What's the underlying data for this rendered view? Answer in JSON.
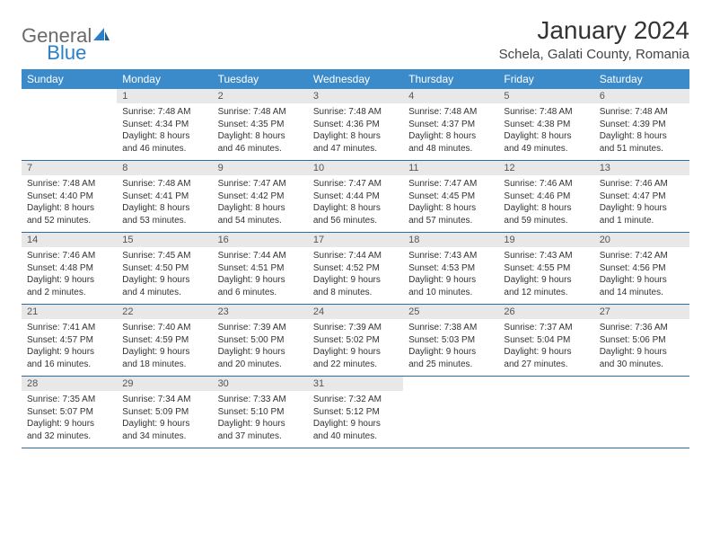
{
  "logo": {
    "text1": "General",
    "text2": "Blue"
  },
  "title": "January 2024",
  "location": "Schela, Galati County, Romania",
  "day_headers": [
    "Sunday",
    "Monday",
    "Tuesday",
    "Wednesday",
    "Thursday",
    "Friday",
    "Saturday"
  ],
  "colors": {
    "header_bg": "#3b8bca",
    "rule": "#2a6ca8",
    "daynum_bg": "#e8e8e8"
  },
  "weeks": [
    {
      "nums": [
        "",
        "1",
        "2",
        "3",
        "4",
        "5",
        "6"
      ],
      "cells": [
        {
          "empty": true
        },
        {
          "sunrise": "Sunrise: 7:48 AM",
          "sunset": "Sunset: 4:34 PM",
          "day1": "Daylight: 8 hours",
          "day2": "and 46 minutes."
        },
        {
          "sunrise": "Sunrise: 7:48 AM",
          "sunset": "Sunset: 4:35 PM",
          "day1": "Daylight: 8 hours",
          "day2": "and 46 minutes."
        },
        {
          "sunrise": "Sunrise: 7:48 AM",
          "sunset": "Sunset: 4:36 PM",
          "day1": "Daylight: 8 hours",
          "day2": "and 47 minutes."
        },
        {
          "sunrise": "Sunrise: 7:48 AM",
          "sunset": "Sunset: 4:37 PM",
          "day1": "Daylight: 8 hours",
          "day2": "and 48 minutes."
        },
        {
          "sunrise": "Sunrise: 7:48 AM",
          "sunset": "Sunset: 4:38 PM",
          "day1": "Daylight: 8 hours",
          "day2": "and 49 minutes."
        },
        {
          "sunrise": "Sunrise: 7:48 AM",
          "sunset": "Sunset: 4:39 PM",
          "day1": "Daylight: 8 hours",
          "day2": "and 51 minutes."
        }
      ]
    },
    {
      "nums": [
        "7",
        "8",
        "9",
        "10",
        "11",
        "12",
        "13"
      ],
      "cells": [
        {
          "sunrise": "Sunrise: 7:48 AM",
          "sunset": "Sunset: 4:40 PM",
          "day1": "Daylight: 8 hours",
          "day2": "and 52 minutes."
        },
        {
          "sunrise": "Sunrise: 7:48 AM",
          "sunset": "Sunset: 4:41 PM",
          "day1": "Daylight: 8 hours",
          "day2": "and 53 minutes."
        },
        {
          "sunrise": "Sunrise: 7:47 AM",
          "sunset": "Sunset: 4:42 PM",
          "day1": "Daylight: 8 hours",
          "day2": "and 54 minutes."
        },
        {
          "sunrise": "Sunrise: 7:47 AM",
          "sunset": "Sunset: 4:44 PM",
          "day1": "Daylight: 8 hours",
          "day2": "and 56 minutes."
        },
        {
          "sunrise": "Sunrise: 7:47 AM",
          "sunset": "Sunset: 4:45 PM",
          "day1": "Daylight: 8 hours",
          "day2": "and 57 minutes."
        },
        {
          "sunrise": "Sunrise: 7:46 AM",
          "sunset": "Sunset: 4:46 PM",
          "day1": "Daylight: 8 hours",
          "day2": "and 59 minutes."
        },
        {
          "sunrise": "Sunrise: 7:46 AM",
          "sunset": "Sunset: 4:47 PM",
          "day1": "Daylight: 9 hours",
          "day2": "and 1 minute."
        }
      ]
    },
    {
      "nums": [
        "14",
        "15",
        "16",
        "17",
        "18",
        "19",
        "20"
      ],
      "cells": [
        {
          "sunrise": "Sunrise: 7:46 AM",
          "sunset": "Sunset: 4:48 PM",
          "day1": "Daylight: 9 hours",
          "day2": "and 2 minutes."
        },
        {
          "sunrise": "Sunrise: 7:45 AM",
          "sunset": "Sunset: 4:50 PM",
          "day1": "Daylight: 9 hours",
          "day2": "and 4 minutes."
        },
        {
          "sunrise": "Sunrise: 7:44 AM",
          "sunset": "Sunset: 4:51 PM",
          "day1": "Daylight: 9 hours",
          "day2": "and 6 minutes."
        },
        {
          "sunrise": "Sunrise: 7:44 AM",
          "sunset": "Sunset: 4:52 PM",
          "day1": "Daylight: 9 hours",
          "day2": "and 8 minutes."
        },
        {
          "sunrise": "Sunrise: 7:43 AM",
          "sunset": "Sunset: 4:53 PM",
          "day1": "Daylight: 9 hours",
          "day2": "and 10 minutes."
        },
        {
          "sunrise": "Sunrise: 7:43 AM",
          "sunset": "Sunset: 4:55 PM",
          "day1": "Daylight: 9 hours",
          "day2": "and 12 minutes."
        },
        {
          "sunrise": "Sunrise: 7:42 AM",
          "sunset": "Sunset: 4:56 PM",
          "day1": "Daylight: 9 hours",
          "day2": "and 14 minutes."
        }
      ]
    },
    {
      "nums": [
        "21",
        "22",
        "23",
        "24",
        "25",
        "26",
        "27"
      ],
      "cells": [
        {
          "sunrise": "Sunrise: 7:41 AM",
          "sunset": "Sunset: 4:57 PM",
          "day1": "Daylight: 9 hours",
          "day2": "and 16 minutes."
        },
        {
          "sunrise": "Sunrise: 7:40 AM",
          "sunset": "Sunset: 4:59 PM",
          "day1": "Daylight: 9 hours",
          "day2": "and 18 minutes."
        },
        {
          "sunrise": "Sunrise: 7:39 AM",
          "sunset": "Sunset: 5:00 PM",
          "day1": "Daylight: 9 hours",
          "day2": "and 20 minutes."
        },
        {
          "sunrise": "Sunrise: 7:39 AM",
          "sunset": "Sunset: 5:02 PM",
          "day1": "Daylight: 9 hours",
          "day2": "and 22 minutes."
        },
        {
          "sunrise": "Sunrise: 7:38 AM",
          "sunset": "Sunset: 5:03 PM",
          "day1": "Daylight: 9 hours",
          "day2": "and 25 minutes."
        },
        {
          "sunrise": "Sunrise: 7:37 AM",
          "sunset": "Sunset: 5:04 PM",
          "day1": "Daylight: 9 hours",
          "day2": "and 27 minutes."
        },
        {
          "sunrise": "Sunrise: 7:36 AM",
          "sunset": "Sunset: 5:06 PM",
          "day1": "Daylight: 9 hours",
          "day2": "and 30 minutes."
        }
      ]
    },
    {
      "nums": [
        "28",
        "29",
        "30",
        "31",
        "",
        "",
        ""
      ],
      "cells": [
        {
          "sunrise": "Sunrise: 7:35 AM",
          "sunset": "Sunset: 5:07 PM",
          "day1": "Daylight: 9 hours",
          "day2": "and 32 minutes."
        },
        {
          "sunrise": "Sunrise: 7:34 AM",
          "sunset": "Sunset: 5:09 PM",
          "day1": "Daylight: 9 hours",
          "day2": "and 34 minutes."
        },
        {
          "sunrise": "Sunrise: 7:33 AM",
          "sunset": "Sunset: 5:10 PM",
          "day1": "Daylight: 9 hours",
          "day2": "and 37 minutes."
        },
        {
          "sunrise": "Sunrise: 7:32 AM",
          "sunset": "Sunset: 5:12 PM",
          "day1": "Daylight: 9 hours",
          "day2": "and 40 minutes."
        },
        {
          "empty": true
        },
        {
          "empty": true
        },
        {
          "empty": true
        }
      ]
    }
  ]
}
